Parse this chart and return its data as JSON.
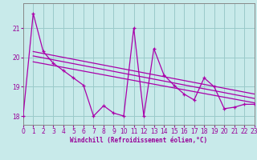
{
  "background_color": "#c8eaea",
  "grid_color": "#9acaca",
  "line_color": "#aa00aa",
  "xlim": [
    0,
    23
  ],
  "ylim": [
    17.7,
    21.85
  ],
  "yticks": [
    18,
    19,
    20,
    21
  ],
  "xticks": [
    0,
    1,
    2,
    3,
    4,
    5,
    6,
    7,
    8,
    9,
    10,
    11,
    12,
    13,
    14,
    15,
    16,
    17,
    18,
    19,
    20,
    21,
    22,
    23
  ],
  "xlabel": "Windchill (Refroidissement éolien,°C)",
  "main_x": [
    0,
    1,
    2,
    3,
    4,
    5,
    6,
    7,
    8,
    9,
    10,
    11,
    12,
    13,
    14,
    15,
    16,
    17,
    18,
    19,
    20,
    21,
    22,
    23
  ],
  "main_y": [
    18.0,
    21.5,
    20.2,
    19.8,
    19.55,
    19.3,
    19.05,
    18.0,
    18.35,
    18.1,
    18.0,
    21.0,
    18.0,
    20.3,
    19.4,
    19.05,
    18.75,
    18.55,
    19.3,
    19.0,
    18.25,
    18.3,
    18.4,
    18.4
  ],
  "trend_lines": [
    {
      "x": [
        1,
        23
      ],
      "y": [
        20.2,
        18.75
      ]
    },
    {
      "x": [
        1,
        23
      ],
      "y": [
        20.05,
        18.6
      ]
    },
    {
      "x": [
        1,
        23
      ],
      "y": [
        19.85,
        18.45
      ]
    }
  ],
  "xlabel_color": "#990099",
  "tick_color": "#990099",
  "spine_color": "#888888",
  "label_fontsize": 5.5,
  "tick_fontsize": 5.5
}
